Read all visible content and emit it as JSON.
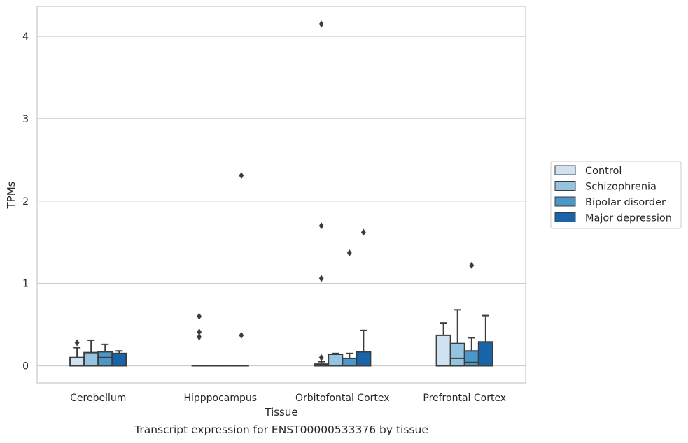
{
  "caption": "Transcript expression for ENST00000533376 by tissue",
  "colors": {
    "Control": "#d0e1f2",
    "Schizophrenia": "#94c4df",
    "Bipolar disorder": "#4a98c9",
    "Major depression": "#1764ab",
    "line": "#3c3c3c",
    "grid": "#cccccc"
  },
  "chart_data": {
    "type": "box",
    "xlabel": "Tissue",
    "ylabel": "TPMs",
    "ylim": [
      -0.2,
      4.35
    ],
    "yticks": [
      0,
      1,
      2,
      3,
      4
    ],
    "grid": "horizontal",
    "legend_position": "right",
    "categories": [
      "Cerebellum",
      "Hipppocampus",
      "Orbitofontal Cortex",
      "Prefrontal Cortex"
    ],
    "series": [
      {
        "name": "Control",
        "boxes": [
          {
            "q1": 0.0,
            "median": 0.0,
            "q3": 0.1,
            "whisker_low": 0.0,
            "whisker_high": 0.22,
            "outliers": [
              0.28
            ]
          },
          {
            "q1": 0.0,
            "median": 0.0,
            "q3": 0.0,
            "whisker_low": 0.0,
            "whisker_high": 0.0,
            "outliers": [
              0.35,
              0.41,
              0.6
            ]
          },
          {
            "q1": 0.0,
            "median": 0.0,
            "q3": 0.02,
            "whisker_low": 0.0,
            "whisker_high": 0.05,
            "outliers": [
              0.1,
              1.06,
              1.7,
              4.15
            ]
          },
          {
            "q1": 0.0,
            "median": 0.0,
            "q3": 0.37,
            "whisker_low": 0.0,
            "whisker_high": 0.52,
            "outliers": []
          }
        ]
      },
      {
        "name": "Schizophrenia",
        "boxes": [
          {
            "q1": 0.0,
            "median": 0.0,
            "q3": 0.16,
            "whisker_low": 0.0,
            "whisker_high": 0.31,
            "outliers": []
          },
          {
            "q1": 0.0,
            "median": 0.0,
            "q3": 0.0,
            "whisker_low": 0.0,
            "whisker_high": 0.0,
            "outliers": []
          },
          {
            "q1": 0.0,
            "median": 0.0,
            "q3": 0.14,
            "whisker_low": 0.0,
            "whisker_high": 0.15,
            "outliers": []
          },
          {
            "q1": 0.0,
            "median": 0.09,
            "q3": 0.27,
            "whisker_low": 0.0,
            "whisker_high": 0.68,
            "outliers": []
          }
        ]
      },
      {
        "name": "Bipolar disorder",
        "boxes": [
          {
            "q1": 0.0,
            "median": 0.1,
            "q3": 0.17,
            "whisker_low": 0.0,
            "whisker_high": 0.26,
            "outliers": []
          },
          {
            "q1": 0.0,
            "median": 0.0,
            "q3": 0.0,
            "whisker_low": 0.0,
            "whisker_high": 0.0,
            "outliers": []
          },
          {
            "q1": 0.0,
            "median": 0.0,
            "q3": 0.09,
            "whisker_low": 0.0,
            "whisker_high": 0.15,
            "outliers": [
              1.37
            ]
          },
          {
            "q1": 0.0,
            "median": 0.04,
            "q3": 0.18,
            "whisker_low": 0.0,
            "whisker_high": 0.34,
            "outliers": [
              1.22
            ]
          }
        ]
      },
      {
        "name": "Major depression",
        "boxes": [
          {
            "q1": 0.0,
            "median": 0.0,
            "q3": 0.15,
            "whisker_low": 0.0,
            "whisker_high": 0.18,
            "outliers": []
          },
          {
            "q1": 0.0,
            "median": 0.0,
            "q3": 0.0,
            "whisker_low": 0.0,
            "whisker_high": 0.0,
            "outliers": [
              0.37,
              2.31
            ]
          },
          {
            "q1": 0.0,
            "median": 0.0,
            "q3": 0.17,
            "whisker_low": 0.0,
            "whisker_high": 0.43,
            "outliers": [
              1.62
            ]
          },
          {
            "q1": 0.0,
            "median": 0.0,
            "q3": 0.29,
            "whisker_low": 0.0,
            "whisker_high": 0.61,
            "outliers": []
          }
        ]
      }
    ]
  }
}
